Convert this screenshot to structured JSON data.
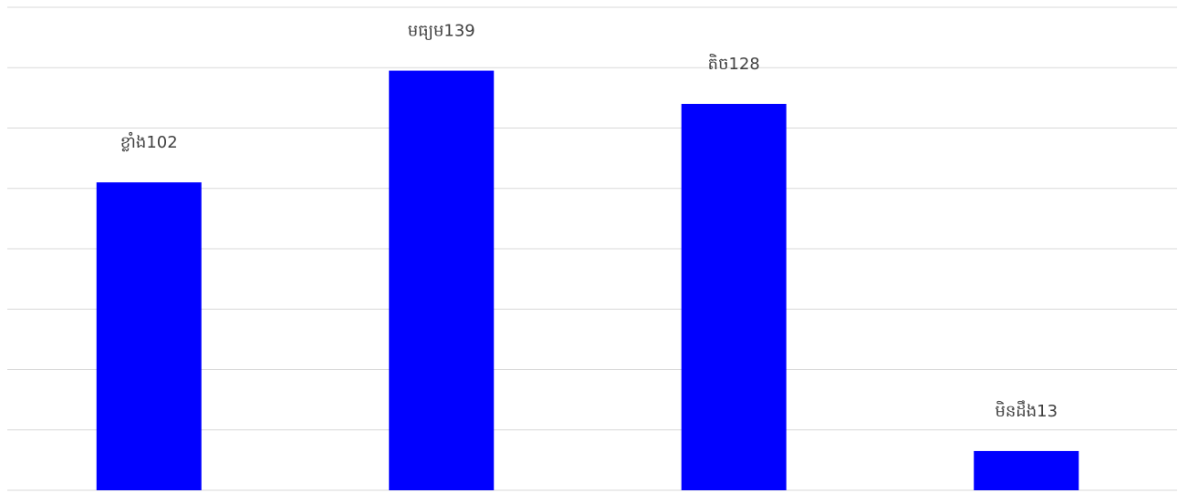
{
  "chart_data": {
    "type": "bar",
    "categories": [
      "ខ្លាំង",
      "មធ្យម",
      "តិច",
      "មិនដឹង"
    ],
    "values": [
      102,
      139,
      128,
      13
    ],
    "data_labels": [
      "ខ្លាំង102",
      "មធ្យម139",
      "តិច128",
      "មិនដឹង13"
    ],
    "title": "",
    "xlabel": "",
    "ylabel": "",
    "ylim": [
      0,
      160
    ],
    "grid": true,
    "legend": "none",
    "bar_color": "#0000ff",
    "grid_color": "#d9d9d9"
  }
}
